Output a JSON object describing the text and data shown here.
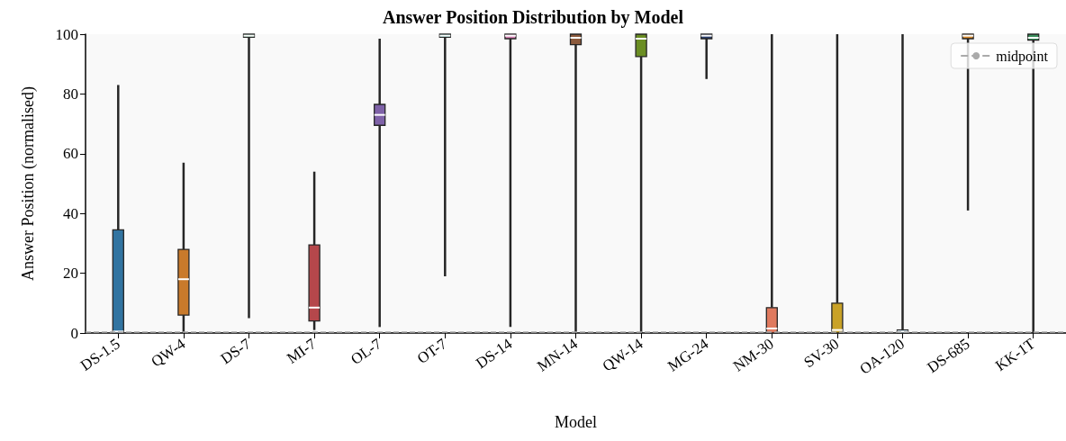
{
  "chart_data": {
    "type": "box",
    "title": "Answer Position Distribution by Model",
    "xlabel": "Model",
    "ylabel": "Answer Position (normalised)",
    "categories": [
      "DS-1.5",
      "QW-4",
      "DS-7",
      "MI-7",
      "OL-7",
      "OT-7",
      "DS-14",
      "MN-14",
      "QW-14",
      "MG-24",
      "NM-30",
      "SV-30",
      "OA-120",
      "DS-685",
      "KK-1T"
    ],
    "colors": [
      "#3274a1",
      "#c97a2b",
      "#3a8f5c",
      "#b5474b",
      "#7f62a8",
      "#2a9d8f",
      "#d982b5",
      "#8c5a3c",
      "#6b8e23",
      "#2a3f6f",
      "#e07a5f",
      "#c9a227",
      "#3274a1",
      "#d98a2b",
      "#3a8f5c"
    ],
    "boxes": [
      {
        "low": 0,
        "q1": 0,
        "median": 0.5,
        "q3": 34.5,
        "high": 83
      },
      {
        "low": 0,
        "q1": 6,
        "median": 18,
        "q3": 28,
        "high": 57
      },
      {
        "low": 5,
        "q1": 99,
        "median": 99.5,
        "q3": 100,
        "high": 100
      },
      {
        "low": 1,
        "q1": 4,
        "median": 8.5,
        "q3": 29.5,
        "high": 54
      },
      {
        "low": 2,
        "q1": 69.5,
        "median": 73,
        "q3": 76.5,
        "high": 98.5
      },
      {
        "low": 19,
        "q1": 99,
        "median": 99.5,
        "q3": 100,
        "high": 100
      },
      {
        "low": 2,
        "q1": 98.5,
        "median": 99.5,
        "q3": 100,
        "high": 100
      },
      {
        "low": 0,
        "q1": 96.5,
        "median": 98.8,
        "q3": 100,
        "high": 100
      },
      {
        "low": 0,
        "q1": 92.5,
        "median": 98.5,
        "q3": 100,
        "high": 100
      },
      {
        "low": 85,
        "q1": 98.5,
        "median": 99.5,
        "q3": 100,
        "high": 100
      },
      {
        "low": 0,
        "q1": 0,
        "median": 1.5,
        "q3": 8.5,
        "high": 100
      },
      {
        "low": 0,
        "q1": 0,
        "median": 1,
        "q3": 10,
        "high": 100
      },
      {
        "low": 0,
        "q1": 0,
        "median": 0.5,
        "q3": 1,
        "high": 100
      },
      {
        "low": 41,
        "q1": 98.5,
        "median": 99.5,
        "q3": 100,
        "high": 100
      },
      {
        "low": 0,
        "q1": 98,
        "median": 98.8,
        "q3": 100,
        "high": 100
      }
    ],
    "ylim": [
      0,
      100
    ],
    "yticks": [
      0,
      20,
      40,
      60,
      80,
      100
    ],
    "ref_lines": [
      {
        "axis": "y",
        "value": 0.5,
        "label": "midpoint",
        "color": "#aaaaaa",
        "line_style": "dashed"
      }
    ],
    "legend": "top right",
    "grid": false
  }
}
